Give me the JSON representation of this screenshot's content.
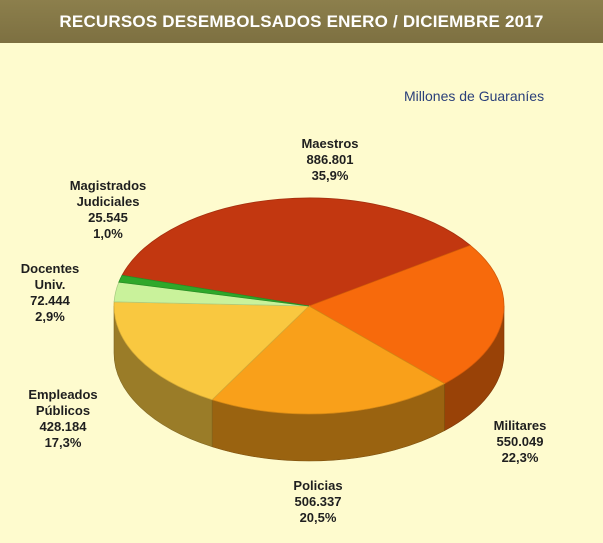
{
  "header": {
    "title": "RECURSOS DESEMBOLSADOS ENERO / DICIEMBRE 2017"
  },
  "chart_data": {
    "type": "pie",
    "title": "RECURSOS DESEMBOLSADOS ENERO / DICIEMBRE 2017",
    "units": "Millones de Guaraníes",
    "slices": [
      {
        "name": "Maestros",
        "value": 886801,
        "value_label": "886.801",
        "percent_label": "35,9%",
        "color": "#c23710"
      },
      {
        "name": "Militares",
        "value": 550049,
        "value_label": "550.049",
        "percent_label": "22,3%",
        "color": "#f76a0c"
      },
      {
        "name": "Policias",
        "value": 506337,
        "value_label": "506.337",
        "percent_label": "20,5%",
        "color": "#f9a01a"
      },
      {
        "name": "Empleados Públicos",
        "value": 428184,
        "value_label": "428.184",
        "percent_label": "17,3%",
        "color": "#f9c840"
      },
      {
        "name": "Docentes Univ.",
        "value": 72444,
        "value_label": "72.444",
        "percent_label": "2,9%",
        "color": "#c9f29b"
      },
      {
        "name": "Magistrados Judiciales",
        "value": 25545,
        "value_label": "25.545",
        "percent_label": "1,0%",
        "color": "#2fa82a"
      }
    ]
  },
  "labels": {
    "maestros": "Maestros\n886.801\n35,9%",
    "militares": "Militares\n550.049\n22,3%",
    "policias": "Policias\n506.337\n20,5%",
    "empleados": "Empleados\nPúblicos\n428.184\n17,3%",
    "docentes": "Docentes\nUniv.\n72.444\n2,9%",
    "magistrados": "Magistrados\nJudiciales\n25.545\n1,0%"
  }
}
